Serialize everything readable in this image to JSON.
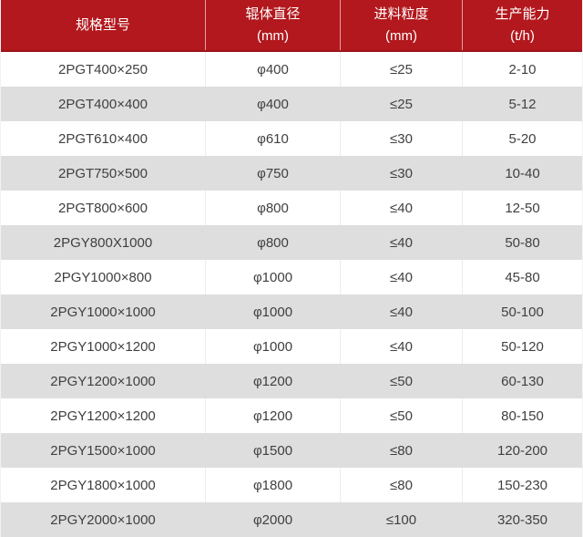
{
  "table": {
    "columns": [
      {
        "title": "规格型号",
        "unit": ""
      },
      {
        "title": "辊体直径",
        "unit": "(mm)"
      },
      {
        "title": "进料粒度",
        "unit": "(mm)"
      },
      {
        "title": "生产能力",
        "unit": "(t/h)"
      }
    ],
    "rows": [
      {
        "model": "2PGT400×250",
        "diameter": "φ400",
        "feed": "≤25",
        "capacity": "2-10"
      },
      {
        "model": "2PGT400×400",
        "diameter": "φ400",
        "feed": "≤25",
        "capacity": "5-12"
      },
      {
        "model": "2PGT610×400",
        "diameter": "φ610",
        "feed": "≤30",
        "capacity": "5-20"
      },
      {
        "model": "2PGT750×500",
        "diameter": "φ750",
        "feed": "≤30",
        "capacity": "10-40"
      },
      {
        "model": "2PGT800×600",
        "diameter": "φ800",
        "feed": "≤40",
        "capacity": "12-50"
      },
      {
        "model": "2PGY800X1000",
        "diameter": "φ800",
        "feed": "≤40",
        "capacity": "50-80"
      },
      {
        "model": "2PGY1000×800",
        "diameter": "φ1000",
        "feed": "≤40",
        "capacity": "45-80"
      },
      {
        "model": "2PGY1000×1000",
        "diameter": "φ1000",
        "feed": "≤40",
        "capacity": "50-100"
      },
      {
        "model": "2PGY1000×1200",
        "diameter": "φ1000",
        "feed": "≤40",
        "capacity": "50-120"
      },
      {
        "model": "2PGY1200×1000",
        "diameter": "φ1200",
        "feed": "≤50",
        "capacity": "60-130"
      },
      {
        "model": "2PGY1200×1200",
        "diameter": "φ1200",
        "feed": "≤50",
        "capacity": "80-150"
      },
      {
        "model": "2PGY1500×1000",
        "diameter": "φ1500",
        "feed": "≤80",
        "capacity": "120-200"
      },
      {
        "model": "2PGY1800×1000",
        "diameter": "φ1800",
        "feed": "≤80",
        "capacity": "150-230"
      },
      {
        "model": "2PGY2000×1000",
        "diameter": "φ2000",
        "feed": "≤100",
        "capacity": "320-350"
      }
    ]
  },
  "colors": {
    "header_bg": "#b2181d",
    "header_border": "#9b151a",
    "header_text": "#ffffff",
    "row_bg": "#ffffff",
    "row_alt_bg": "#dedede",
    "cell_text": "#404040",
    "divider": "#ececec"
  }
}
